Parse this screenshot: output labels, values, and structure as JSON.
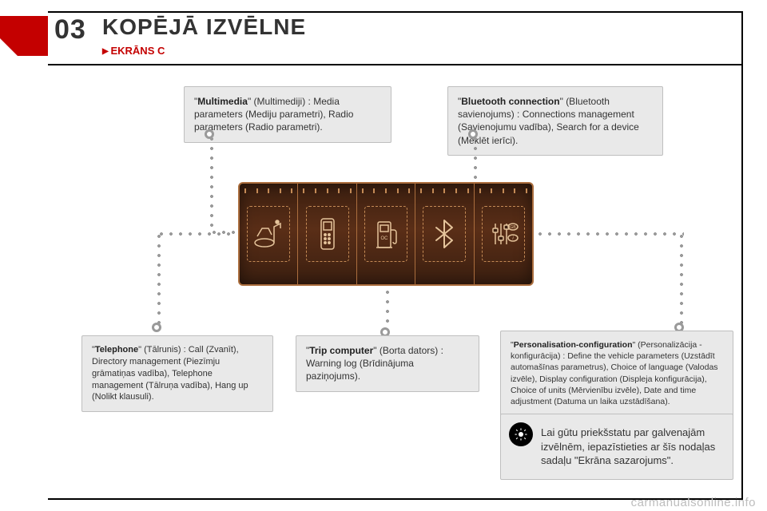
{
  "header": {
    "number": "03",
    "title": "KOPĒJĀ IZVĒLNE",
    "sub": "EKRĀNS C"
  },
  "cards": {
    "multimedia": {
      "bold": "Multimedia",
      "text": "\"Multimedia\" (Multimediji) : Media parameters (Mediju parametri), Radio parameters (Radio parametri)."
    },
    "bluetooth": {
      "bold": "Bluetooth connection",
      "text": "\"Bluetooth connection\" (Bluetooth savienojums) : Connections management (Savienojumu vadība), Search for a device (Meklēt ierīci)."
    },
    "telephone": {
      "bold": "Telephone",
      "text": "\"Telephone\" (Tālrunis) : Call (Zvanīt), Directory management (Piezīmju grāmatiņas vadība), Telephone management (Tālruņa vadība), Hang up (Nolikt klausuli)."
    },
    "trip": {
      "bold": "Trip computer",
      "text": "\"Trip computer\" (Borta dators) : Warning log (Brīdinājuma paziņojums)."
    },
    "personal": {
      "bold": "Personalisation-configuration",
      "text": "\"Personalisation-configuration\" (Personalizācija - konfigurācija) : Define the vehicle parameters (Uzstādīt automašīnas parametrus), Choice of language (Valodas izvēle), Display configuration (Displeja konfigurācija), Choice of units (Mērvienību izvēle), Date and time adjustment (Datuma un laika uzstādīšana)."
    }
  },
  "tip": {
    "text": "Lai gūtu priekšstatu par galvenajām izvēlnēm, iepazīstieties ar šīs nodaļas sadaļu \"Ekrāna sazarojums\"."
  },
  "menu_icons": {
    "items": [
      "media",
      "phone",
      "fuel",
      "bluetooth",
      "settings"
    ],
    "badge1": "GB",
    "badge2": "i"
  },
  "colors": {
    "accent_red": "#c40000",
    "card_bg": "#e9e9e9",
    "card_border": "#bfbfbf",
    "menu_dark": "#3b1f10",
    "menu_mid": "#5a2e17",
    "menu_border": "#ab6e3e",
    "dot": "#9a9a9a"
  },
  "watermark": "carmanualsonline.info"
}
